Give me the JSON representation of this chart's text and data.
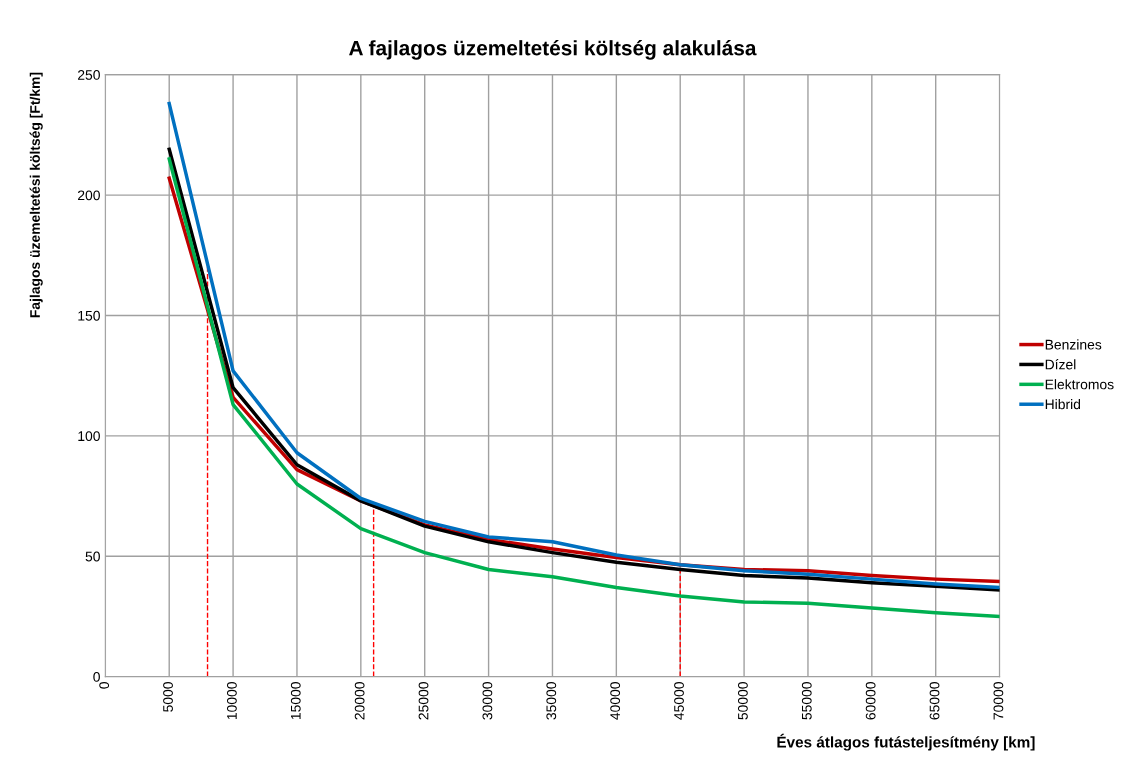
{
  "chart_data": {
    "type": "line",
    "title": "A fajlagos üzemeltetési költség alakulása",
    "xlabel": "Éves átlagos futásteljesítmény [km]",
    "ylabel": "Fajlagos üzemeltetési költség [Ft/km]",
    "x": [
      5000,
      10000,
      15000,
      20000,
      25000,
      30000,
      35000,
      40000,
      45000,
      50000,
      55000,
      60000,
      65000,
      70000
    ],
    "series": [
      {
        "name": "Benzines",
        "color": "#c00000",
        "values": [
          207,
          116,
          86,
          73,
          63,
          57,
          53,
          49.5,
          46.5,
          44.5,
          44,
          42,
          40.5,
          39.5
        ]
      },
      {
        "name": "Dízel",
        "color": "#000000",
        "values": [
          219,
          120,
          88,
          73,
          62.5,
          56,
          51.5,
          47.5,
          44.5,
          42,
          41,
          39,
          37.5,
          36
        ]
      },
      {
        "name": "Elektromos",
        "color": "#00b050",
        "values": [
          215,
          113,
          80,
          61.5,
          51.5,
          44.5,
          41.5,
          37,
          33.5,
          31,
          30.5,
          28.5,
          26.5,
          25
        ]
      },
      {
        "name": "Hibrid",
        "color": "#0070c0",
        "values": [
          238,
          127,
          93,
          74,
          64.5,
          58,
          56,
          50.5,
          46.5,
          44,
          42.5,
          40.5,
          38.5,
          37
        ]
      }
    ],
    "ref_lines": [
      {
        "axis": "x",
        "value": 8000,
        "color": "#ff0000",
        "line_style": "dashed"
      },
      {
        "axis": "x",
        "value": 21000,
        "color": "#ff0000",
        "line_style": "dashed"
      },
      {
        "axis": "x",
        "value": 45000,
        "color": "#ff0000",
        "line_style": "dashed"
      }
    ],
    "xlim": [
      0,
      70000
    ],
    "xticks": [
      0,
      5000,
      10000,
      15000,
      20000,
      25000,
      30000,
      35000,
      40000,
      45000,
      50000,
      55000,
      60000,
      65000,
      70000
    ],
    "ylim": [
      0,
      250
    ],
    "yticks": [
      0,
      50,
      100,
      150,
      200,
      250
    ],
    "grid": true,
    "legend": "right",
    "marker": "none",
    "line_style": "solid"
  }
}
